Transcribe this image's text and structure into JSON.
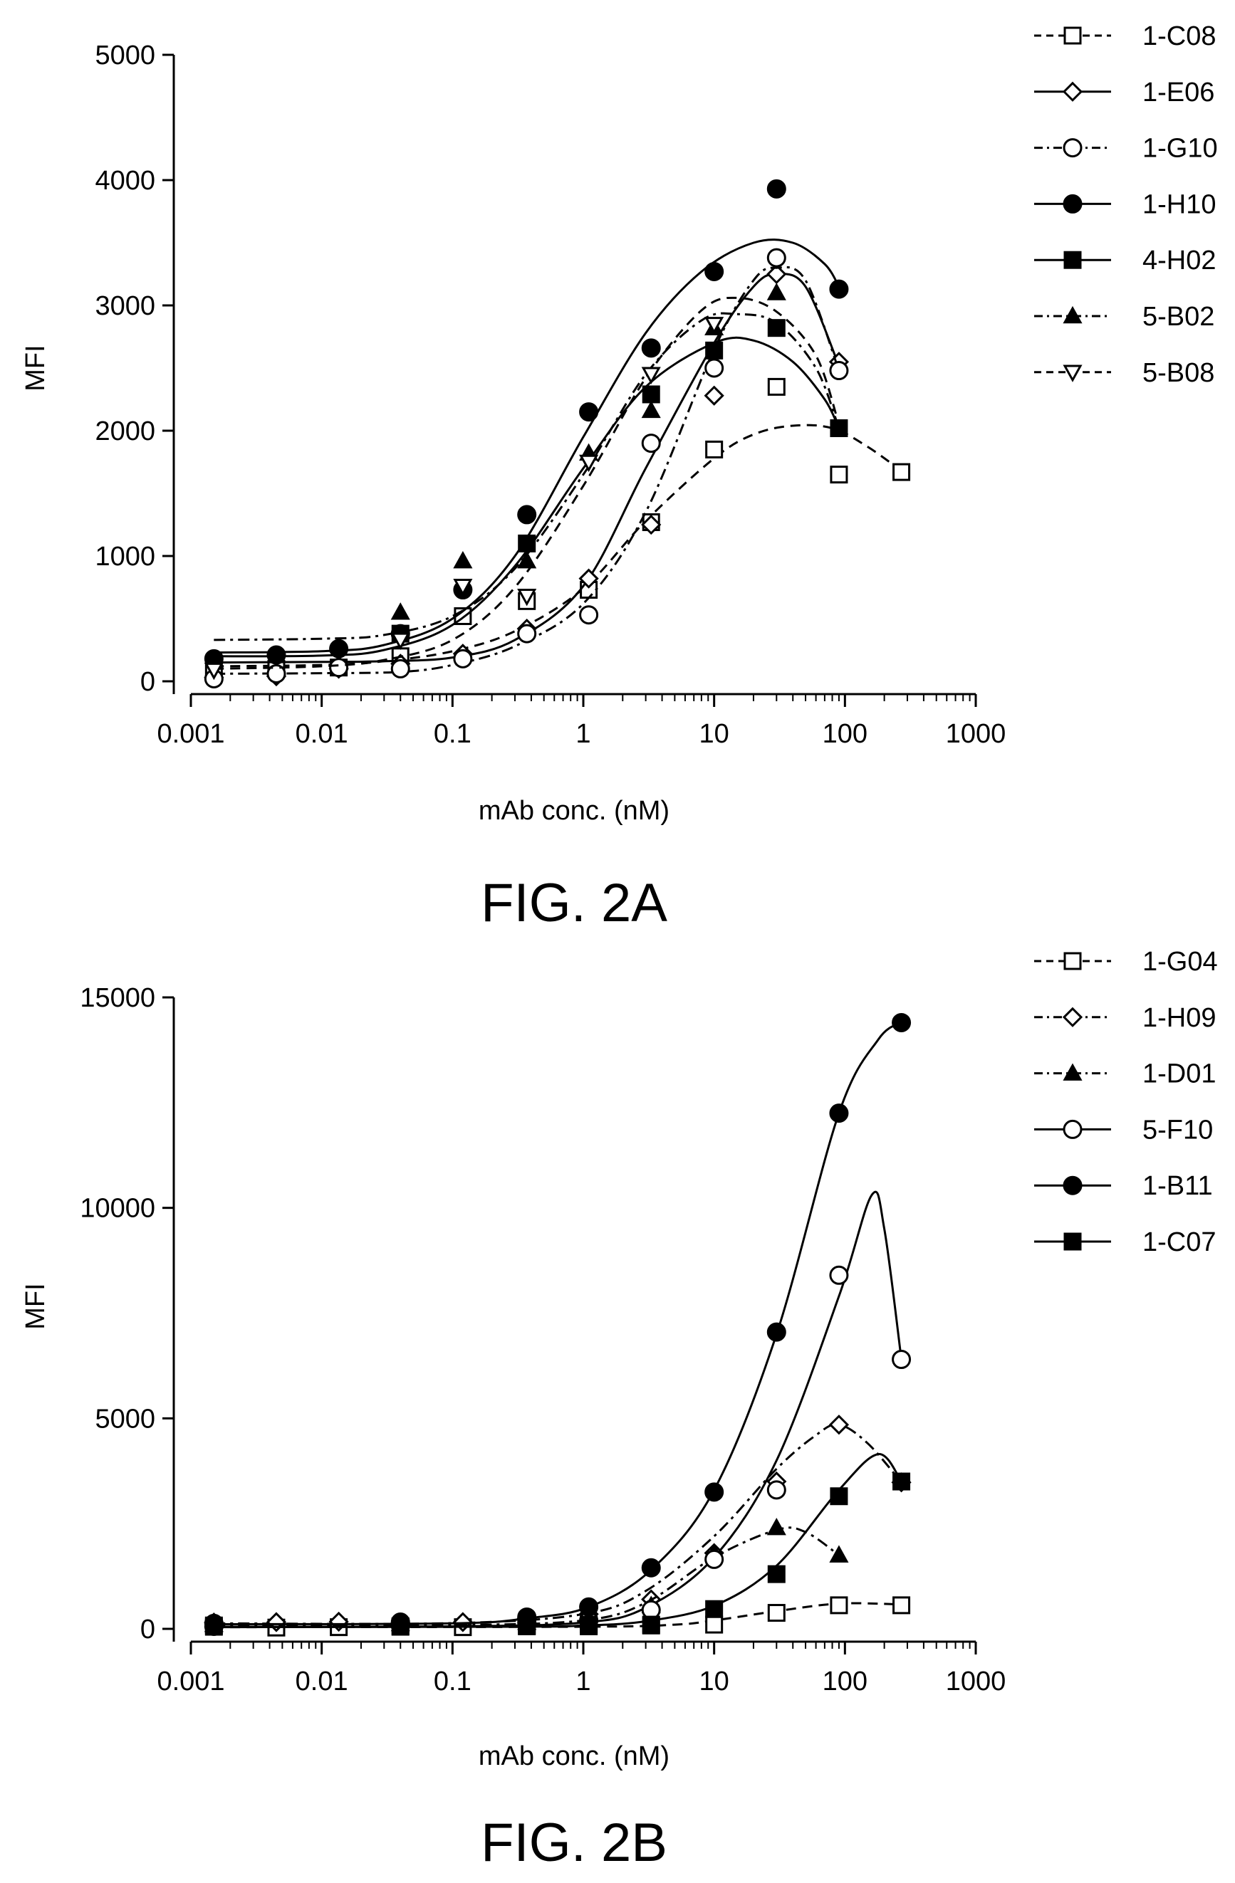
{
  "chart_data": [
    {
      "type": "scatter",
      "caption": "FIG. 2A",
      "xlabel": "mAb conc. (nM)",
      "ylabel": "MFI",
      "x_scale": "log",
      "xlim": [
        0.001,
        1000
      ],
      "ylim": [
        0,
        5000
      ],
      "x_ticks": [
        0.001,
        0.01,
        0.1,
        1,
        10,
        100,
        1000
      ],
      "x_tick_labels": [
        "0.001",
        "0.01",
        "0.1",
        "1",
        "10",
        "100",
        "1000"
      ],
      "y_ticks": [
        0,
        1000,
        2000,
        3000,
        4000,
        5000
      ],
      "y_tick_labels": [
        "0",
        "1000",
        "2000",
        "3000",
        "4000",
        "5000"
      ],
      "legend_position": "top-right outside",
      "grid": false,
      "series": [
        {
          "name": "1-C08",
          "marker": "square-open",
          "line": "dash",
          "x": [
            0.0015,
            0.0045,
            0.0135,
            0.04,
            0.12,
            0.37,
            1.1,
            3.3,
            10,
            30,
            90,
            270
          ],
          "y": [
            90,
            100,
            110,
            200,
            520,
            640,
            730,
            1270,
            1850,
            2350,
            1650,
            1670
          ],
          "curve": [
            [
              0.0015,
              120
            ],
            [
              0.01,
              130
            ],
            [
              0.03,
              160
            ],
            [
              0.1,
              240
            ],
            [
              0.3,
              400
            ],
            [
              1,
              740
            ],
            [
              3,
              1280
            ],
            [
              10,
              1780
            ],
            [
              20,
              1970
            ],
            [
              40,
              2040
            ],
            [
              80,
              2020
            ],
            [
              150,
              1870
            ],
            [
              270,
              1680
            ]
          ]
        },
        {
          "name": "1-E06",
          "marker": "diamond-open",
          "line": "solid",
          "x": [
            0.0015,
            0.0045,
            0.0135,
            0.04,
            0.12,
            0.37,
            1.1,
            3.3,
            10,
            30,
            90
          ],
          "y": [
            30,
            40,
            100,
            140,
            220,
            420,
            820,
            1250,
            2280,
            3250,
            2550
          ],
          "curve": [
            [
              0.0015,
              150
            ],
            [
              0.01,
              155
            ],
            [
              0.03,
              160
            ],
            [
              0.1,
              190
            ],
            [
              0.3,
              330
            ],
            [
              1,
              760
            ],
            [
              3,
              1700
            ],
            [
              10,
              2700
            ],
            [
              20,
              3150
            ],
            [
              30,
              3250
            ],
            [
              50,
              3150
            ],
            [
              90,
              2520
            ]
          ]
        },
        {
          "name": "1-G10",
          "marker": "circle-open",
          "line": "dashdot",
          "x": [
            0.0015,
            0.0045,
            0.0135,
            0.04,
            0.12,
            0.37,
            1.1,
            3.3,
            10,
            30,
            90
          ],
          "y": [
            20,
            60,
            110,
            100,
            180,
            380,
            530,
            1900,
            2500,
            3380,
            2480
          ],
          "curve": [
            [
              0.0015,
              60
            ],
            [
              0.01,
              65
            ],
            [
              0.04,
              75
            ],
            [
              0.1,
              130
            ],
            [
              0.3,
              280
            ],
            [
              1,
              620
            ],
            [
              3,
              1350
            ],
            [
              10,
              2650
            ],
            [
              20,
              3200
            ],
            [
              30,
              3300
            ],
            [
              50,
              3200
            ],
            [
              90,
              2480
            ]
          ]
        },
        {
          "name": "1-H10",
          "marker": "circle-filled",
          "line": "solid",
          "x": [
            0.0015,
            0.0045,
            0.0135,
            0.04,
            0.12,
            0.37,
            1.1,
            3.3,
            10,
            30,
            90
          ],
          "y": [
            180,
            210,
            260,
            380,
            730,
            1330,
            2150,
            2660,
            3270,
            3930,
            3130
          ],
          "curve": [
            [
              0.0015,
              230
            ],
            [
              0.01,
              240
            ],
            [
              0.03,
              290
            ],
            [
              0.1,
              500
            ],
            [
              0.3,
              1000
            ],
            [
              1,
              1950
            ],
            [
              3,
              2780
            ],
            [
              8,
              3270
            ],
            [
              20,
              3500
            ],
            [
              40,
              3500
            ],
            [
              70,
              3330
            ],
            [
              90,
              3150
            ]
          ]
        },
        {
          "name": "4-H02",
          "marker": "square-filled",
          "line": "solid",
          "x": [
            0.04,
            0.37,
            3.3,
            10,
            30,
            90
          ],
          "y": [
            380,
            1100,
            2290,
            2640,
            2820,
            2020
          ],
          "curve": [
            [
              0.0015,
              200
            ],
            [
              0.01,
              205
            ],
            [
              0.03,
              250
            ],
            [
              0.1,
              450
            ],
            [
              0.3,
              920
            ],
            [
              1,
              1700
            ],
            [
              3,
              2350
            ],
            [
              10,
              2700
            ],
            [
              20,
              2720
            ],
            [
              40,
              2550
            ],
            [
              70,
              2250
            ],
            [
              90,
              2020
            ]
          ]
        },
        {
          "name": "5-B02",
          "marker": "triangle-up-filled",
          "line": "dashdot",
          "x": [
            0.04,
            0.12,
            0.37,
            1.1,
            3.3,
            10,
            30
          ],
          "y": [
            550,
            960,
            960,
            1820,
            2160,
            2820,
            3100
          ],
          "curve": [
            [
              0.0015,
              330
            ],
            [
              0.01,
              340
            ],
            [
              0.03,
              370
            ],
            [
              0.1,
              520
            ],
            [
              0.3,
              900
            ],
            [
              1,
              1650
            ],
            [
              3,
              2450
            ],
            [
              8,
              2880
            ],
            [
              15,
              2930
            ],
            [
              30,
              2860
            ],
            [
              60,
              2500
            ],
            [
              90,
              2020
            ]
          ]
        },
        {
          "name": "5-B08",
          "marker": "triangle-down-open",
          "line": "dash",
          "x": [
            0.0015,
            0.04,
            0.12,
            0.37,
            1.1,
            3.3,
            10
          ],
          "y": [
            90,
            330,
            760,
            680,
            1750,
            2450,
            2850
          ],
          "curve": [
            [
              0.0015,
              100
            ],
            [
              0.01,
              120
            ],
            [
              0.03,
              170
            ],
            [
              0.1,
              330
            ],
            [
              0.3,
              750
            ],
            [
              1,
              1560
            ],
            [
              3,
              2420
            ],
            [
              8,
              2960
            ],
            [
              15,
              3060
            ],
            [
              30,
              2950
            ],
            [
              60,
              2600
            ],
            [
              90,
              2050
            ]
          ]
        }
      ]
    },
    {
      "type": "scatter",
      "caption": "FIG. 2B",
      "xlabel": "mAb conc. (nM)",
      "ylabel": "MFI",
      "x_scale": "log",
      "xlim": [
        0.001,
        1000
      ],
      "ylim": [
        0,
        15000
      ],
      "x_ticks": [
        0.001,
        0.01,
        0.1,
        1,
        10,
        100,
        1000
      ],
      "x_tick_labels": [
        "0.001",
        "0.01",
        "0.1",
        "1",
        "10",
        "100",
        "1000"
      ],
      "y_ticks": [
        0,
        5000,
        10000,
        15000
      ],
      "y_tick_labels": [
        "0",
        "5000",
        "10000",
        "15000"
      ],
      "legend_position": "top-right outside",
      "grid": false,
      "series": [
        {
          "name": "1-G04",
          "marker": "square-open",
          "line": "dash",
          "x": [
            0.0015,
            0.0045,
            0.0135,
            0.04,
            0.12,
            0.37,
            1.1,
            3.3,
            10,
            30,
            90,
            270
          ],
          "y": [
            50,
            30,
            40,
            50,
            40,
            60,
            60,
            80,
            100,
            380,
            560,
            560
          ],
          "curve": [
            [
              0.0015,
              40
            ],
            [
              1,
              50
            ],
            [
              5,
              100
            ],
            [
              10,
              200
            ],
            [
              30,
              420
            ],
            [
              90,
              600
            ],
            [
              270,
              580
            ]
          ]
        },
        {
          "name": "1-H09",
          "marker": "diamond-open",
          "line": "dashdot",
          "x": [
            0.0015,
            0.0045,
            0.0135,
            0.04,
            0.12,
            0.37,
            1.1,
            3.3,
            10,
            30,
            90,
            270
          ],
          "y": [
            150,
            160,
            170,
            140,
            160,
            250,
            350,
            700,
            1800,
            3500,
            4850,
            3480
          ],
          "curve": [
            [
              0.0015,
              130
            ],
            [
              0.1,
              135
            ],
            [
              1,
              350
            ],
            [
              3,
              900
            ],
            [
              10,
              2200
            ],
            [
              30,
              3800
            ],
            [
              60,
              4600
            ],
            [
              90,
              4850
            ],
            [
              150,
              4400
            ],
            [
              270,
              3480
            ]
          ]
        },
        {
          "name": "1-D01",
          "marker": "triangle-up-filled",
          "line": "dashdot",
          "x": [
            0.0015,
            0.04,
            0.37,
            1.1,
            3.3,
            10,
            30,
            90
          ],
          "y": [
            100,
            120,
            150,
            250,
            550,
            1800,
            2400,
            1750
          ],
          "curve": [
            [
              0.0015,
              80
            ],
            [
              0.1,
              90
            ],
            [
              1,
              200
            ],
            [
              3,
              620
            ],
            [
              10,
              1700
            ],
            [
              30,
              2350
            ],
            [
              50,
              2300
            ],
            [
              90,
              1750
            ]
          ]
        },
        {
          "name": "5-F10",
          "marker": "circle-open",
          "line": "solid",
          "x": [
            0.0015,
            0.04,
            0.37,
            1.1,
            3.3,
            10,
            30,
            90,
            270
          ],
          "y": [
            60,
            80,
            150,
            200,
            450,
            1650,
            3300,
            8400,
            6400
          ],
          "curve": [
            [
              0.0015,
              50
            ],
            [
              0.1,
              60
            ],
            [
              1,
              150
            ],
            [
              3,
              500
            ],
            [
              10,
              1700
            ],
            [
              30,
              4000
            ],
            [
              90,
              7900
            ],
            [
              160,
              10300
            ],
            [
              200,
              9500
            ],
            [
              270,
              6400
            ]
          ]
        },
        {
          "name": "1-B11",
          "marker": "circle-filled",
          "line": "solid",
          "x": [
            0.0015,
            0.04,
            0.37,
            1.1,
            3.3,
            10,
            30,
            90,
            270
          ],
          "y": [
            130,
            160,
            280,
            520,
            1450,
            3250,
            7050,
            12250,
            14400
          ],
          "curve": [
            [
              0.0015,
              110
            ],
            [
              0.1,
              130
            ],
            [
              0.37,
              250
            ],
            [
              1.1,
              520
            ],
            [
              3.3,
              1400
            ],
            [
              10,
              3300
            ],
            [
              30,
              7000
            ],
            [
              90,
              12250
            ],
            [
              180,
              14000
            ],
            [
              270,
              14400
            ]
          ]
        },
        {
          "name": "1-C07",
          "marker": "square-filled",
          "line": "solid",
          "x": [
            0.0015,
            0.04,
            0.37,
            1.1,
            3.3,
            10,
            30,
            90,
            270
          ],
          "y": [
            80,
            60,
            80,
            100,
            100,
            470,
            1300,
            3150,
            3500
          ],
          "curve": [
            [
              0.0015,
              40
            ],
            [
              0.3,
              50
            ],
            [
              1,
              80
            ],
            [
              3,
              180
            ],
            [
              10,
              550
            ],
            [
              30,
              1500
            ],
            [
              90,
              3300
            ],
            [
              180,
              4150
            ],
            [
              270,
              3500
            ]
          ]
        }
      ]
    }
  ]
}
